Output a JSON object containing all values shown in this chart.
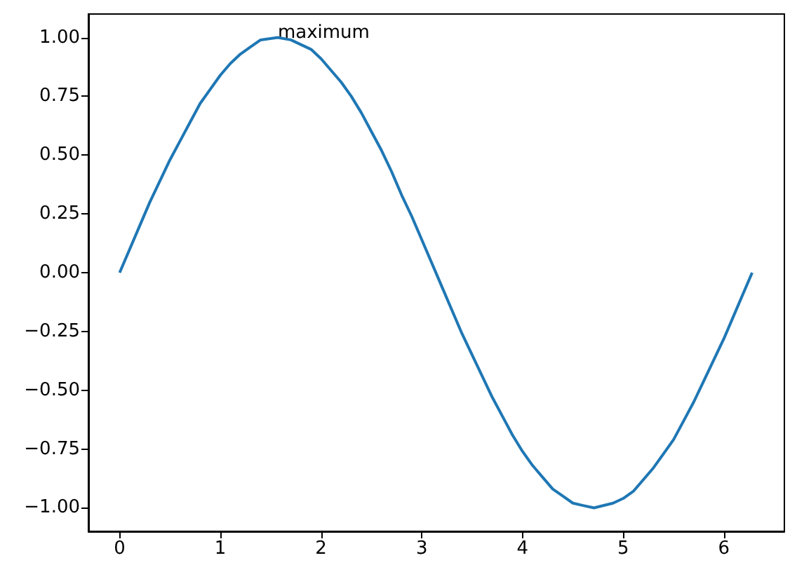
{
  "chart_data": {
    "type": "line",
    "x": [
      0,
      0.1,
      0.2,
      0.3,
      0.4,
      0.5,
      0.6,
      0.7,
      0.8,
      0.9,
      1.0,
      1.1,
      1.2,
      1.3,
      1.4,
      1.57,
      1.7,
      1.8,
      1.9,
      2.0,
      2.1,
      2.2,
      2.3,
      2.4,
      2.5,
      2.6,
      2.7,
      2.8,
      2.9,
      3.0,
      3.1,
      3.2,
      3.3,
      3.4,
      3.5,
      3.6,
      3.7,
      3.8,
      3.9,
      4.0,
      4.1,
      4.2,
      4.3,
      4.4,
      4.5,
      4.6,
      4.71,
      4.9,
      5.0,
      5.1,
      5.2,
      5.3,
      5.4,
      5.5,
      5.6,
      5.7,
      5.8,
      5.9,
      6.0,
      6.1,
      6.2,
      6.28
    ],
    "series": [
      {
        "color": "#1f77b4",
        "values": [
          0,
          0.1,
          0.2,
          0.3,
          0.39,
          0.48,
          0.56,
          0.64,
          0.72,
          0.78,
          0.84,
          0.89,
          0.93,
          0.96,
          0.99,
          1.0,
          0.99,
          0.97,
          0.95,
          0.91,
          0.86,
          0.81,
          0.75,
          0.68,
          0.6,
          0.52,
          0.43,
          0.33,
          0.24,
          0.14,
          0.04,
          -0.06,
          -0.16,
          -0.26,
          -0.35,
          -0.44,
          -0.53,
          -0.61,
          -0.69,
          -0.76,
          -0.82,
          -0.87,
          -0.92,
          -0.95,
          -0.98,
          -0.99,
          -1.0,
          -0.98,
          -0.96,
          -0.93,
          -0.88,
          -0.83,
          -0.77,
          -0.71,
          -0.63,
          -0.55,
          -0.46,
          -0.37,
          -0.28,
          -0.18,
          -0.08,
          0
        ]
      }
    ],
    "xlim": [
      -0.31,
      6.6
    ],
    "xticks": [
      0,
      1,
      2,
      3,
      4,
      5,
      6
    ],
    "ylim": [
      -1.1,
      1.1
    ],
    "yticks": [
      {
        "value": -1,
        "label": "−1.00"
      },
      {
        "value": -0.75,
        "label": "−0.75"
      },
      {
        "value": -0.5,
        "label": "−0.50"
      },
      {
        "value": -0.25,
        "label": "−0.25"
      },
      {
        "value": 0,
        "label": "0.00"
      },
      {
        "value": 0.25,
        "label": "0.25"
      },
      {
        "value": 0.5,
        "label": "0.50"
      },
      {
        "value": 0.75,
        "label": "0.75"
      },
      {
        "value": 1,
        "label": "1.00"
      }
    ],
    "annotations": [
      {
        "text": "maximum",
        "x": 1.57,
        "y": 1.0
      }
    ],
    "grid": false,
    "marker": "none",
    "line_style": "solid"
  }
}
